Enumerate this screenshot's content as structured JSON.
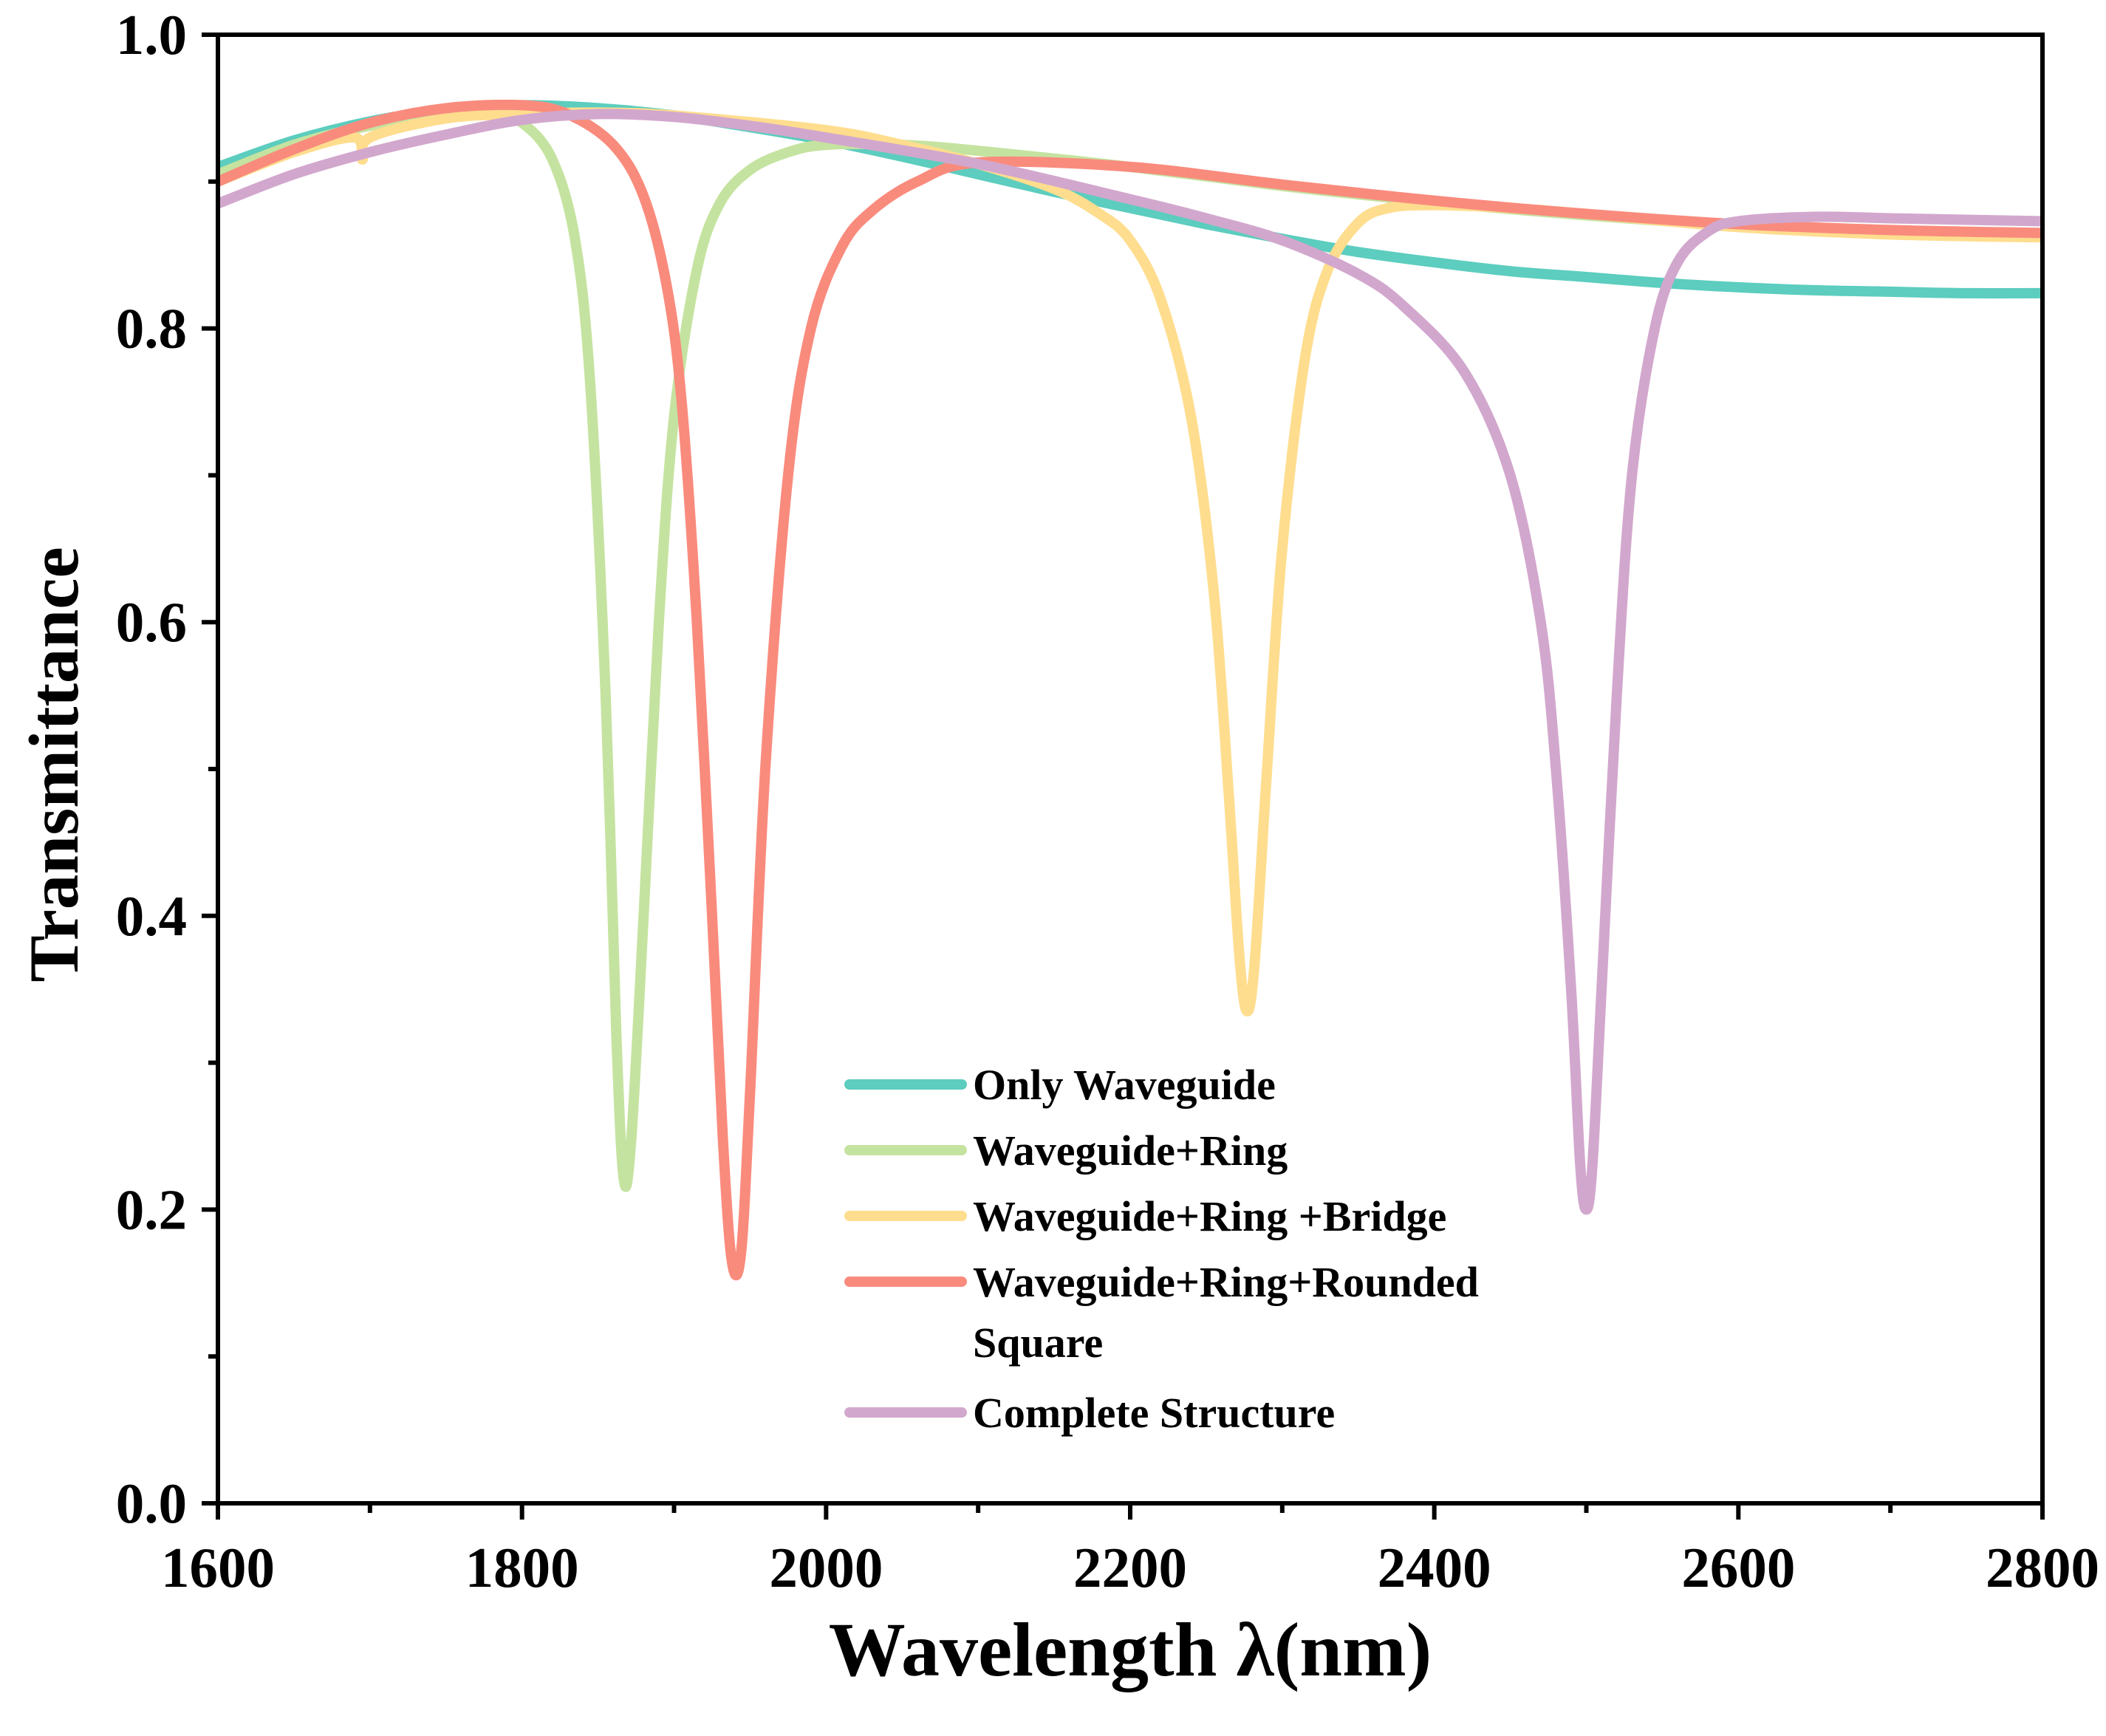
{
  "chart_data": {
    "type": "line",
    "title": "",
    "xlabel": "Wavelength λ(nm)",
    "ylabel": "Transmittance",
    "xlim": [
      1600,
      2800
    ],
    "ylim": [
      0.0,
      1.0
    ],
    "x_ticks": [
      1600,
      1800,
      2000,
      2200,
      2400,
      2600,
      2800
    ],
    "x_tick_labels": [
      "1600",
      "1800",
      "2000",
      "2200",
      "2400",
      "2600",
      "2800"
    ],
    "x_minor_ticks": [
      1700,
      1900,
      2100,
      2300,
      2500,
      2700
    ],
    "y_ticks": [
      0.0,
      0.2,
      0.4,
      0.6,
      0.8,
      1.0
    ],
    "y_tick_labels": [
      "0.0",
      "0.2",
      "0.4",
      "0.6",
      "0.8",
      "1.0"
    ],
    "y_minor_ticks": [
      0.1,
      0.3,
      0.5,
      0.7,
      0.9
    ],
    "grid": false,
    "legend_position": "bottom-center",
    "series": [
      {
        "name": "Only Waveguide",
        "color": "#5ccdbe",
        "x": [
          1600,
          1650,
          1700,
          1750,
          1800,
          1850,
          1900,
          1950,
          2000,
          2050,
          2100,
          2150,
          2200,
          2250,
          2300,
          2350,
          2400,
          2450,
          2500,
          2550,
          2600,
          2650,
          2700,
          2750,
          2800
        ],
        "values": [
          0.91,
          0.928,
          0.941,
          0.949,
          0.952,
          0.95,
          0.945,
          0.937,
          0.928,
          0.917,
          0.905,
          0.893,
          0.882,
          0.871,
          0.861,
          0.852,
          0.845,
          0.839,
          0.835,
          0.831,
          0.828,
          0.826,
          0.825,
          0.824,
          0.824
        ]
      },
      {
        "name": "Waveguide+Ring",
        "color": "#c5e3a0",
        "x": [
          1600,
          1650,
          1700,
          1750,
          1780,
          1800,
          1820,
          1835,
          1845,
          1855,
          1862,
          1867,
          1872,
          1880,
          1890,
          1900,
          1915,
          1930,
          1950,
          1975,
          2000,
          2050,
          2100,
          2200,
          2300,
          2400,
          2500,
          2600,
          2700,
          2800
        ],
        "values": [
          0.905,
          0.925,
          0.938,
          0.945,
          0.946,
          0.94,
          0.915,
          0.86,
          0.76,
          0.55,
          0.32,
          0.22,
          0.25,
          0.4,
          0.6,
          0.74,
          0.84,
          0.885,
          0.908,
          0.92,
          0.925,
          0.925,
          0.921,
          0.91,
          0.897,
          0.886,
          0.877,
          0.87,
          0.866,
          0.863
        ]
      },
      {
        "name": "Waveguide+Ring +Bridge",
        "color": "#fedd8e",
        "x": [
          1600,
          1650,
          1690,
          1695,
          1700,
          1750,
          1800,
          1850,
          1900,
          2000,
          2050,
          2100,
          2150,
          2180,
          2200,
          2220,
          2240,
          2255,
          2265,
          2272,
          2277,
          2282,
          2290,
          2300,
          2315,
          2330,
          2350,
          2370,
          2400,
          2450,
          2500,
          2600,
          2700,
          2800
        ],
        "values": [
          0.9,
          0.92,
          0.93,
          0.915,
          0.93,
          0.943,
          0.946,
          0.947,
          0.945,
          0.935,
          0.925,
          0.912,
          0.895,
          0.878,
          0.86,
          0.82,
          0.74,
          0.62,
          0.48,
          0.37,
          0.335,
          0.37,
          0.5,
          0.65,
          0.78,
          0.84,
          0.872,
          0.882,
          0.884,
          0.882,
          0.878,
          0.869,
          0.864,
          0.862
        ]
      },
      {
        "name": "Waveguide+Ring+Rounded Square",
        "color": "#f98b7d",
        "x": [
          1600,
          1650,
          1700,
          1750,
          1800,
          1830,
          1860,
          1880,
          1895,
          1905,
          1915,
          1925,
          1932,
          1938,
          1944,
          1950,
          1960,
          1975,
          1990,
          2010,
          2030,
          2060,
          2100,
          2200,
          2300,
          2400,
          2500,
          2600,
          2700,
          2800
        ],
        "values": [
          0.9,
          0.922,
          0.94,
          0.95,
          0.952,
          0.946,
          0.925,
          0.89,
          0.83,
          0.75,
          0.6,
          0.4,
          0.25,
          0.165,
          0.17,
          0.28,
          0.5,
          0.7,
          0.8,
          0.855,
          0.88,
          0.9,
          0.913,
          0.91,
          0.898,
          0.887,
          0.878,
          0.871,
          0.867,
          0.865
        ]
      },
      {
        "name": "Complete Structure",
        "color": "#d2a7cd",
        "x": [
          1600,
          1650,
          1700,
          1750,
          1800,
          1850,
          1900,
          1950,
          2000,
          2100,
          2200,
          2250,
          2300,
          2350,
          2380,
          2420,
          2450,
          2470,
          2480,
          2490,
          2496,
          2500,
          2504,
          2510,
          2520,
          2530,
          2545,
          2560,
          2580,
          2600,
          2650,
          2700,
          2750,
          2800
        ],
        "values": [
          0.885,
          0.905,
          0.92,
          0.932,
          0.942,
          0.946,
          0.944,
          0.938,
          0.93,
          0.912,
          0.888,
          0.875,
          0.86,
          0.837,
          0.815,
          0.77,
          0.7,
          0.6,
          0.5,
          0.35,
          0.23,
          0.2,
          0.23,
          0.35,
          0.55,
          0.7,
          0.8,
          0.845,
          0.866,
          0.873,
          0.876,
          0.875,
          0.874,
          0.873
        ]
      }
    ],
    "legend_entries": [
      {
        "lines": [
          "Only Waveguide"
        ]
      },
      {
        "lines": [
          "Waveguide+Ring"
        ]
      },
      {
        "lines": [
          "Waveguide+Ring +Bridge"
        ]
      },
      {
        "lines": [
          "Waveguide+Ring+Rounded",
          "Square"
        ]
      },
      {
        "lines": [
          "Complete Structure"
        ]
      }
    ]
  }
}
